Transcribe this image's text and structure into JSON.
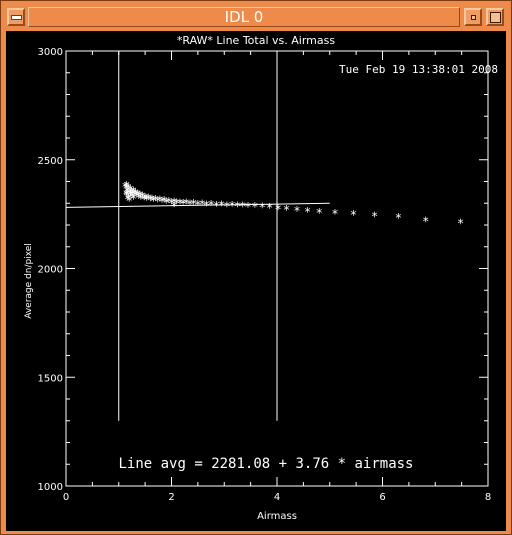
{
  "window": {
    "title": "IDL 0",
    "icons": {
      "menu": "window-menu-icon",
      "minimize": "minimize-icon",
      "maximize": "maximize-icon"
    }
  },
  "chart_data": {
    "type": "scatter",
    "title": "*RAW* Line Total vs. Airmass",
    "timestamp": "Tue Feb 19 13:38:01 2008",
    "xlabel": "Airmass",
    "ylabel": "Average dn/pixel",
    "xlim": [
      0,
      8
    ],
    "ylim": [
      1000,
      3000
    ],
    "x_ticks": [
      "0",
      "2",
      "4",
      "6",
      "8"
    ],
    "y_ticks": [
      "1000",
      "1500",
      "2000",
      "2500",
      "3000"
    ],
    "annotation": "Line avg = 2281.08 + 3.76 * airmass",
    "fit": {
      "intercept": 2281.08,
      "slope": 3.76,
      "x_range": [
        0,
        5
      ]
    },
    "vertical_lines": [
      {
        "x": 1.0,
        "y_range": [
          1300,
          3000
        ]
      },
      {
        "x": 4.0,
        "y_range": [
          1300,
          3000
        ]
      }
    ],
    "marker": "*",
    "color": "#ffffff",
    "points": [
      [
        1.12,
        2375
      ],
      [
        1.14,
        2365
      ],
      [
        1.15,
        2380
      ],
      [
        1.16,
        2355
      ],
      [
        1.18,
        2370
      ],
      [
        1.2,
        2345
      ],
      [
        1.22,
        2360
      ],
      [
        1.24,
        2350
      ],
      [
        1.26,
        2340
      ],
      [
        1.28,
        2355
      ],
      [
        1.3,
        2335
      ],
      [
        1.32,
        2345
      ],
      [
        1.34,
        2330
      ],
      [
        1.36,
        2340
      ],
      [
        1.38,
        2325
      ],
      [
        1.4,
        2335
      ],
      [
        1.42,
        2320
      ],
      [
        1.45,
        2330
      ],
      [
        1.48,
        2318
      ],
      [
        1.5,
        2325
      ],
      [
        1.53,
        2315
      ],
      [
        1.56,
        2322
      ],
      [
        1.6,
        2312
      ],
      [
        1.63,
        2318
      ],
      [
        1.66,
        2310
      ],
      [
        1.7,
        2315
      ],
      [
        1.74,
        2308
      ],
      [
        1.78,
        2312
      ],
      [
        1.82,
        2305
      ],
      [
        1.86,
        2310
      ],
      [
        1.9,
        2302
      ],
      [
        1.95,
        2306
      ],
      [
        2.0,
        2300
      ],
      [
        2.05,
        2304
      ],
      [
        2.1,
        2298
      ],
      [
        2.05,
        2285
      ],
      [
        2.16,
        2300
      ],
      [
        2.22,
        2296
      ],
      [
        2.28,
        2298
      ],
      [
        2.35,
        2294
      ],
      [
        2.42,
        2296
      ],
      [
        2.5,
        2292
      ],
      [
        2.58,
        2294
      ],
      [
        2.66,
        2290
      ],
      [
        2.75,
        2292
      ],
      [
        2.85,
        2288
      ],
      [
        2.95,
        2290
      ],
      [
        3.05,
        2286
      ],
      [
        3.15,
        2287
      ],
      [
        3.25,
        2284
      ],
      [
        3.35,
        2285
      ],
      [
        3.45,
        2282
      ],
      [
        3.58,
        2283
      ],
      [
        3.72,
        2280
      ],
      [
        3.86,
        2278
      ],
      [
        4.02,
        2272
      ],
      [
        4.18,
        2268
      ],
      [
        4.38,
        2264
      ],
      [
        4.58,
        2260
      ],
      [
        4.8,
        2256
      ],
      [
        5.1,
        2250
      ],
      [
        5.45,
        2246
      ],
      [
        5.85,
        2240
      ],
      [
        6.3,
        2232
      ],
      [
        6.82,
        2216
      ],
      [
        7.48,
        2206
      ],
      [
        1.15,
        2335
      ],
      [
        1.19,
        2325
      ],
      [
        1.22,
        2338
      ],
      [
        1.25,
        2328
      ],
      [
        1.28,
        2320
      ],
      [
        1.17,
        2318
      ],
      [
        1.14,
        2340
      ],
      [
        1.2,
        2310
      ]
    ]
  }
}
